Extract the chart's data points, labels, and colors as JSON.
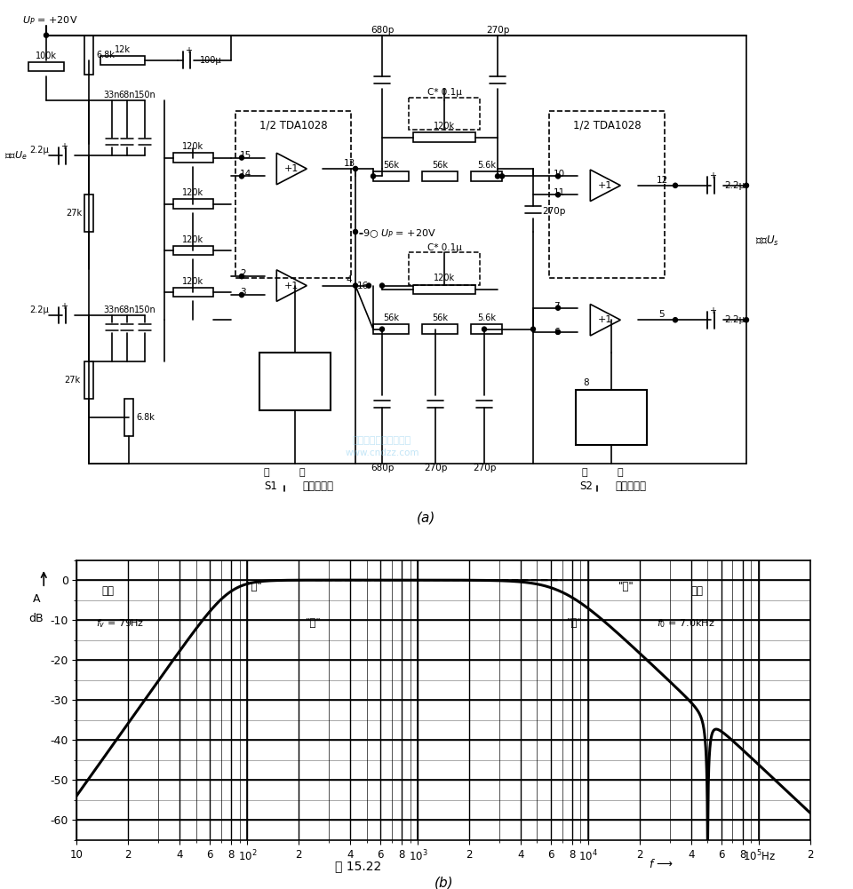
{
  "figure_size": [
    9.6,
    10.01
  ],
  "dpi": 100,
  "background_color": "#ffffff",
  "graph_b": {
    "ylabel": "A dB",
    "xmin": 10,
    "xmax": 200000,
    "ymin": -65,
    "ymax": 5,
    "yticks": [
      0,
      -10,
      -20,
      -30,
      -40,
      -50,
      -60
    ],
    "curve_color": "#000000",
    "curve_lw": 2.2,
    "grid_color": "#000000",
    "fig15_label": "图 15.22",
    "label_b": "(b)",
    "label_a": "(a)"
  }
}
